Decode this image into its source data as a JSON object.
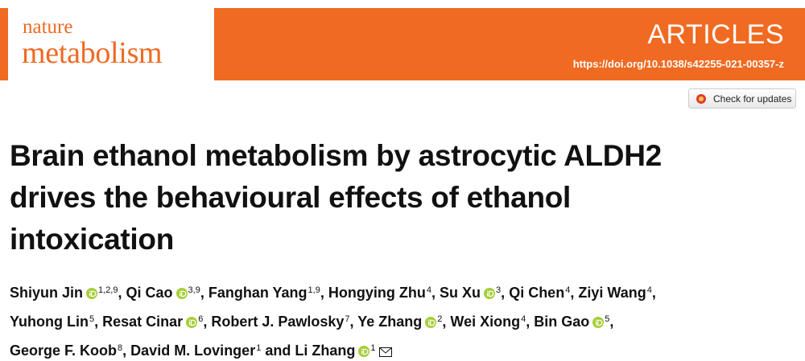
{
  "header": {
    "journal_top": "nature",
    "journal_bottom": "metabolism",
    "article_type": "ARTICLES",
    "doi": "https://doi.org/10.1038/s42255-021-00357-z"
  },
  "check_updates": "Check for updates",
  "title_lines": [
    "Brain ethanol metabolism by astrocytic ALDH2",
    "drives the behavioural effects of ethanol",
    "intoxication"
  ],
  "separator": ",",
  "final_separator": "and",
  "author_lines": [
    [
      {
        "name": "Shiyun Jin",
        "aff": "1,2,9",
        "orcid": true
      },
      {
        "name": "Qi Cao",
        "aff": "3,9",
        "orcid": true
      },
      {
        "name": "Fanghan Yang",
        "aff": "1,9",
        "orcid": false
      },
      {
        "name": "Hongying Zhu",
        "aff": "4",
        "orcid": false
      },
      {
        "name": "Su Xu",
        "aff": "3",
        "orcid": true
      },
      {
        "name": "Qi Chen",
        "aff": "4",
        "orcid": false
      },
      {
        "name": "Ziyi Wang",
        "aff": "4",
        "orcid": false
      }
    ],
    [
      {
        "name": "Yuhong Lin",
        "aff": "5",
        "orcid": false
      },
      {
        "name": "Resat Cinar",
        "aff": "6",
        "orcid": true
      },
      {
        "name": "Robert J. Pawlosky",
        "aff": "7",
        "orcid": false
      },
      {
        "name": "Ye Zhang",
        "aff": "2",
        "orcid": true
      },
      {
        "name": "Wei Xiong",
        "aff": "4",
        "orcid": false
      },
      {
        "name": "Bin Gao",
        "aff": "5",
        "orcid": true
      }
    ],
    [
      {
        "name": "George F. Koob",
        "aff": "8",
        "orcid": false
      },
      {
        "name": "David M. Lovinger",
        "aff": "1",
        "orcid": false
      },
      {
        "name": "Li Zhang",
        "aff": "1",
        "orcid": true,
        "corresponding": true
      }
    ]
  ]
}
